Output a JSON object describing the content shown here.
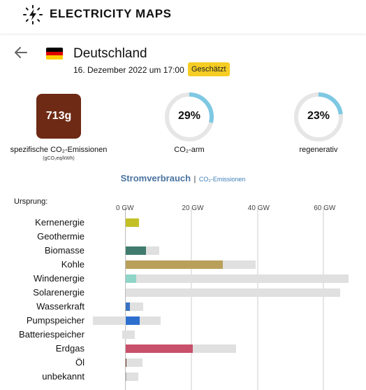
{
  "header": {
    "brand": "ELECTRICITY MAPS",
    "logo_icon": "lightning-logo-icon"
  },
  "zone": {
    "country": "Deutschland",
    "datetime": "16. Dezember 2022 um 17:00",
    "badge": "Geschätzt",
    "flag_colors": [
      "#000000",
      "#dd0000",
      "#ffce00"
    ]
  },
  "stats": {
    "intensity": {
      "value": "713g",
      "label": "spezifische CO₂-Emissionen",
      "unit": "(gCO₂eq/kWh)",
      "color": "#6e2a14"
    },
    "low_carbon": {
      "value": "29%",
      "fraction": 0.29,
      "label": "CO₂-arm"
    },
    "renewable": {
      "value": "23%",
      "fraction": 0.23,
      "label": "regenerativ"
    },
    "ring_color": "#7ec8e3",
    "ring_track_color": "#e6e6e6"
  },
  "tabs": {
    "active": "Stromverbrauch",
    "separator": "|",
    "inactive": "CO₂-Emissionen"
  },
  "chart_data": {
    "type": "bar",
    "title": "Ursprung:",
    "x_unit": "GW",
    "x_ticks": [
      "0 GW",
      "20 GW",
      "40 GW",
      "60 GW"
    ],
    "x_tick_values": [
      0,
      20,
      40,
      60
    ],
    "xlim": [
      -10,
      68
    ],
    "categories": [
      "Kernenergie",
      "Geothermie",
      "Biomasse",
      "Kohle",
      "Windenergie",
      "Solarenergie",
      "Wasserkraft",
      "Pumpspeicher",
      "Batteriespeicher",
      "Erdgas",
      "Öl",
      "unbekannt"
    ],
    "series": [
      {
        "name": "",
        "values": [
          4.0,
          0,
          6.2,
          29.5,
          3.2,
          0,
          1.3,
          4.3,
          0,
          20.3,
          0.3,
          0.2
        ],
        "colors": [
          "#c3c025",
          "#cc5c3a",
          "#3f7c6e",
          "#b9a05a",
          "#8fd5c8",
          "#f5c242",
          "#3a73c4",
          "#2d6fcf",
          "#b44fc4",
          "#c8506a",
          "#6b3d2b",
          "#aaaaaa"
        ]
      },
      {
        "name": "",
        "values": [
          4.0,
          0,
          10.1,
          39.5,
          67.5,
          65.0,
          5.3,
          10.5,
          2.7,
          33.5,
          5.0,
          3.9
        ]
      },
      {
        "name": "",
        "values": [
          0,
          0,
          0,
          0,
          0,
          0,
          0,
          -10.0,
          -1.0,
          0,
          0,
          0
        ]
      }
    ]
  }
}
